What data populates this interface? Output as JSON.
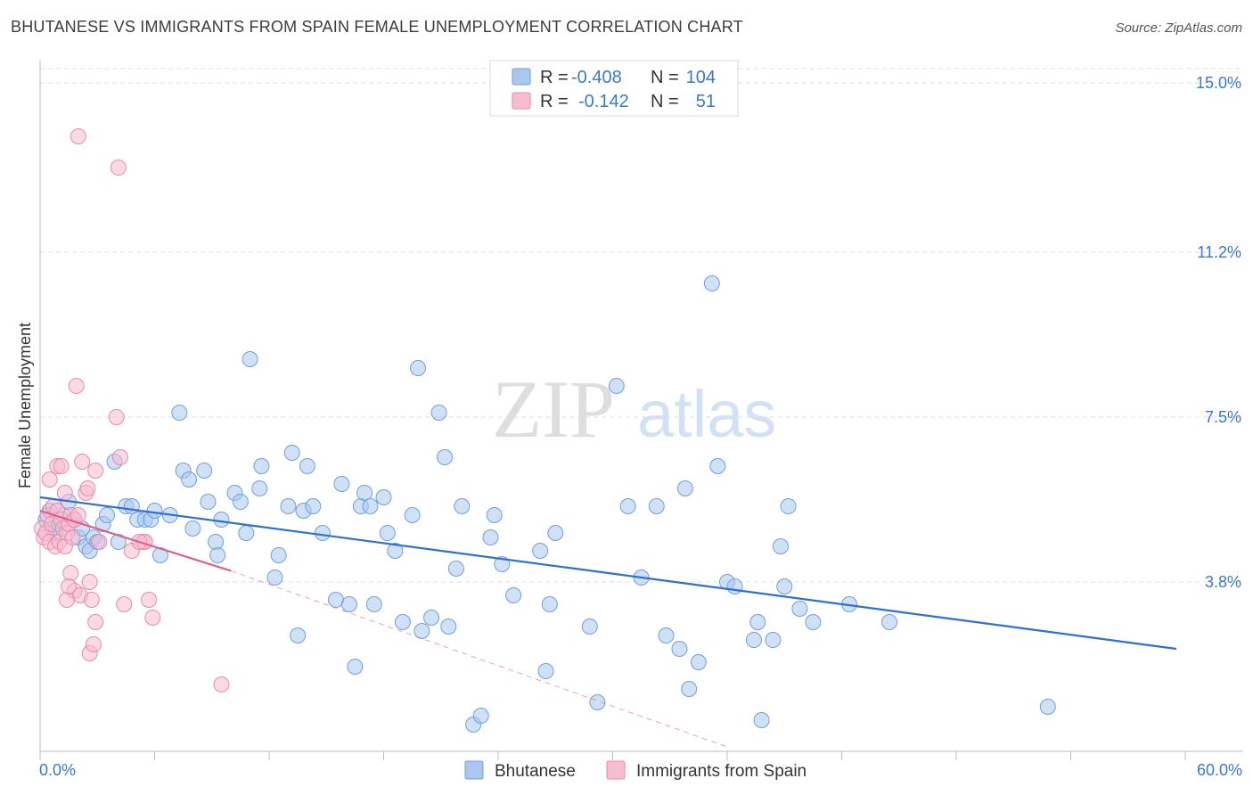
{
  "title": "BHUTANESE VS IMMIGRANTS FROM SPAIN FEMALE UNEMPLOYMENT CORRELATION CHART",
  "source": "Source: ZipAtlas.com",
  "watermark": {
    "zip": "ZIP",
    "atlas": "atlas"
  },
  "colors": {
    "blue_fill": "#aac8ef",
    "blue_stroke": "#6f9fdd",
    "blue_line": "#2f6fd0",
    "pink_fill": "#f6bcd0",
    "pink_stroke": "#e98aab",
    "pink_line": "#e0608c",
    "grid": "#dcdcdc",
    "axis_text": "#3a78c9"
  },
  "legend": {
    "rows": [
      {
        "r_label": "R =",
        "r_value": "-0.408",
        "n_label": "N =",
        "n_value": "104"
      },
      {
        "r_label": "R =",
        "r_value": "-0.142",
        "n_label": "N =",
        "n_value": "51"
      }
    ]
  },
  "chart_data": {
    "type": "scatter",
    "title": "BHUTANESE VS IMMIGRANTS FROM SPAIN FEMALE UNEMPLOYMENT CORRELATION CHART",
    "xlabel": "",
    "ylabel": "Female Unemployment",
    "xlim": [
      0,
      60
    ],
    "ylim": [
      0,
      15.5
    ],
    "x_tick_labels": {
      "min": "0.0%",
      "max": "60.0%"
    },
    "y_ticks": [
      {
        "value": 3.8,
        "label": "3.8%"
      },
      {
        "value": 7.5,
        "label": "7.5%"
      },
      {
        "value": 11.2,
        "label": "11.2%"
      },
      {
        "value": 15.0,
        "label": "15.0%"
      }
    ],
    "series": [
      {
        "name": "Bhutanese",
        "trend": {
          "x_start": 0,
          "y_start": 5.7,
          "x_end": 60,
          "y_end": 2.3,
          "extended": false
        },
        "points": [
          [
            0.3,
            5.2
          ],
          [
            0.5,
            5.4
          ],
          [
            0.6,
            5.0
          ],
          [
            0.8,
            4.9
          ],
          [
            1.0,
            5.1
          ],
          [
            1.2,
            5.3
          ],
          [
            1.5,
            5.6
          ],
          [
            1.8,
            5.2
          ],
          [
            2.0,
            4.8
          ],
          [
            2.2,
            5.0
          ],
          [
            2.4,
            4.6
          ],
          [
            2.6,
            4.5
          ],
          [
            2.8,
            4.8
          ],
          [
            3.0,
            4.7
          ],
          [
            3.3,
            5.1
          ],
          [
            3.5,
            5.3
          ],
          [
            3.9,
            6.5
          ],
          [
            4.1,
            4.7
          ],
          [
            4.5,
            5.5
          ],
          [
            4.8,
            5.5
          ],
          [
            5.1,
            5.2
          ],
          [
            5.5,
            5.2
          ],
          [
            5.8,
            5.2
          ],
          [
            6.0,
            5.4
          ],
          [
            6.3,
            4.4
          ],
          [
            6.8,
            5.3
          ],
          [
            7.3,
            7.6
          ],
          [
            7.5,
            6.3
          ],
          [
            7.8,
            6.1
          ],
          [
            8.0,
            5.0
          ],
          [
            8.6,
            6.3
          ],
          [
            8.8,
            5.6
          ],
          [
            9.2,
            4.7
          ],
          [
            9.3,
            4.4
          ],
          [
            9.5,
            5.2
          ],
          [
            10.2,
            5.8
          ],
          [
            10.5,
            5.6
          ],
          [
            10.8,
            4.9
          ],
          [
            11.0,
            8.8
          ],
          [
            11.5,
            5.9
          ],
          [
            11.6,
            6.4
          ],
          [
            12.3,
            3.9
          ],
          [
            12.5,
            4.4
          ],
          [
            13.0,
            5.5
          ],
          [
            13.2,
            6.7
          ],
          [
            13.5,
            2.6
          ],
          [
            13.8,
            5.4
          ],
          [
            14.0,
            6.4
          ],
          [
            14.3,
            5.5
          ],
          [
            14.8,
            4.9
          ],
          [
            15.5,
            3.4
          ],
          [
            15.8,
            6.0
          ],
          [
            16.2,
            3.3
          ],
          [
            16.5,
            1.9
          ],
          [
            16.8,
            5.5
          ],
          [
            17.0,
            5.8
          ],
          [
            17.3,
            5.5
          ],
          [
            17.5,
            3.3
          ],
          [
            18.0,
            5.7
          ],
          [
            18.2,
            4.9
          ],
          [
            18.6,
            4.5
          ],
          [
            19.0,
            2.9
          ],
          [
            19.5,
            5.3
          ],
          [
            19.8,
            8.6
          ],
          [
            20.0,
            2.7
          ],
          [
            20.5,
            3.0
          ],
          [
            20.9,
            7.6
          ],
          [
            21.2,
            6.6
          ],
          [
            21.4,
            2.8
          ],
          [
            21.8,
            4.1
          ],
          [
            22.1,
            5.5
          ],
          [
            22.7,
            0.6
          ],
          [
            23.1,
            0.8
          ],
          [
            23.6,
            4.8
          ],
          [
            23.8,
            5.3
          ],
          [
            24.2,
            4.2
          ],
          [
            24.8,
            3.5
          ],
          [
            26.2,
            4.5
          ],
          [
            26.5,
            1.8
          ],
          [
            26.7,
            3.3
          ],
          [
            27.0,
            4.9
          ],
          [
            28.8,
            2.8
          ],
          [
            29.2,
            1.1
          ],
          [
            30.2,
            8.2
          ],
          [
            30.8,
            5.5
          ],
          [
            31.5,
            3.9
          ],
          [
            32.3,
            5.5
          ],
          [
            32.8,
            2.6
          ],
          [
            33.5,
            2.3
          ],
          [
            33.8,
            5.9
          ],
          [
            34.0,
            1.4
          ],
          [
            34.5,
            2.0
          ],
          [
            35.5,
            6.4
          ],
          [
            35.2,
            10.5
          ],
          [
            36.0,
            3.8
          ],
          [
            36.4,
            3.7
          ],
          [
            37.4,
            2.5
          ],
          [
            37.6,
            2.9
          ],
          [
            37.8,
            0.7
          ],
          [
            38.4,
            2.5
          ],
          [
            38.8,
            4.6
          ],
          [
            39.0,
            3.7
          ],
          [
            39.2,
            5.5
          ],
          [
            39.8,
            3.2
          ],
          [
            40.5,
            2.9
          ],
          [
            42.4,
            3.3
          ],
          [
            44.5,
            2.9
          ],
          [
            52.8,
            1.0
          ]
        ]
      },
      {
        "name": "Immigrants from Spain",
        "trend": {
          "x_start": 0,
          "y_start": 5.4,
          "x_end": 10,
          "y_end": 4.05,
          "extended": true,
          "ext_x_end": 36,
          "ext_y_end": 0.1
        },
        "points": [
          [
            0.1,
            5.0
          ],
          [
            0.2,
            4.8
          ],
          [
            0.3,
            4.9
          ],
          [
            0.4,
            5.3
          ],
          [
            0.5,
            4.7
          ],
          [
            0.6,
            5.1
          ],
          [
            0.7,
            5.5
          ],
          [
            0.8,
            4.6
          ],
          [
            0.9,
            5.4
          ],
          [
            1.0,
            4.7
          ],
          [
            1.1,
            5.2
          ],
          [
            1.2,
            5.0
          ],
          [
            1.3,
            4.6
          ],
          [
            1.4,
            4.9
          ],
          [
            1.5,
            5.1
          ],
          [
            1.6,
            5.3
          ],
          [
            1.7,
            4.8
          ],
          [
            1.8,
            5.2
          ],
          [
            0.5,
            6.1
          ],
          [
            0.9,
            6.4
          ],
          [
            1.3,
            5.8
          ],
          [
            1.1,
            6.4
          ],
          [
            2.0,
            5.3
          ],
          [
            2.4,
            5.8
          ],
          [
            2.5,
            5.9
          ],
          [
            2.2,
            6.5
          ],
          [
            1.6,
            4.0
          ],
          [
            1.8,
            3.6
          ],
          [
            2.1,
            3.5
          ],
          [
            1.4,
            3.4
          ],
          [
            1.5,
            3.7
          ],
          [
            2.6,
            3.8
          ],
          [
            2.7,
            3.4
          ],
          [
            2.9,
            2.9
          ],
          [
            2.9,
            6.3
          ],
          [
            3.1,
            4.7
          ],
          [
            2.6,
            2.2
          ],
          [
            2.8,
            2.4
          ],
          [
            1.9,
            8.2
          ],
          [
            2.0,
            13.8
          ],
          [
            4.1,
            13.1
          ],
          [
            4.2,
            6.6
          ],
          [
            4.0,
            7.5
          ],
          [
            4.4,
            3.3
          ],
          [
            4.8,
            4.5
          ],
          [
            5.4,
            4.7
          ],
          [
            5.5,
            4.7
          ],
          [
            5.7,
            3.4
          ],
          [
            5.9,
            3.0
          ],
          [
            9.5,
            1.5
          ],
          [
            5.2,
            4.7
          ]
        ]
      }
    ]
  },
  "bottom_legend": {
    "items": [
      "Bhutanese",
      "Immigrants from Spain"
    ]
  }
}
